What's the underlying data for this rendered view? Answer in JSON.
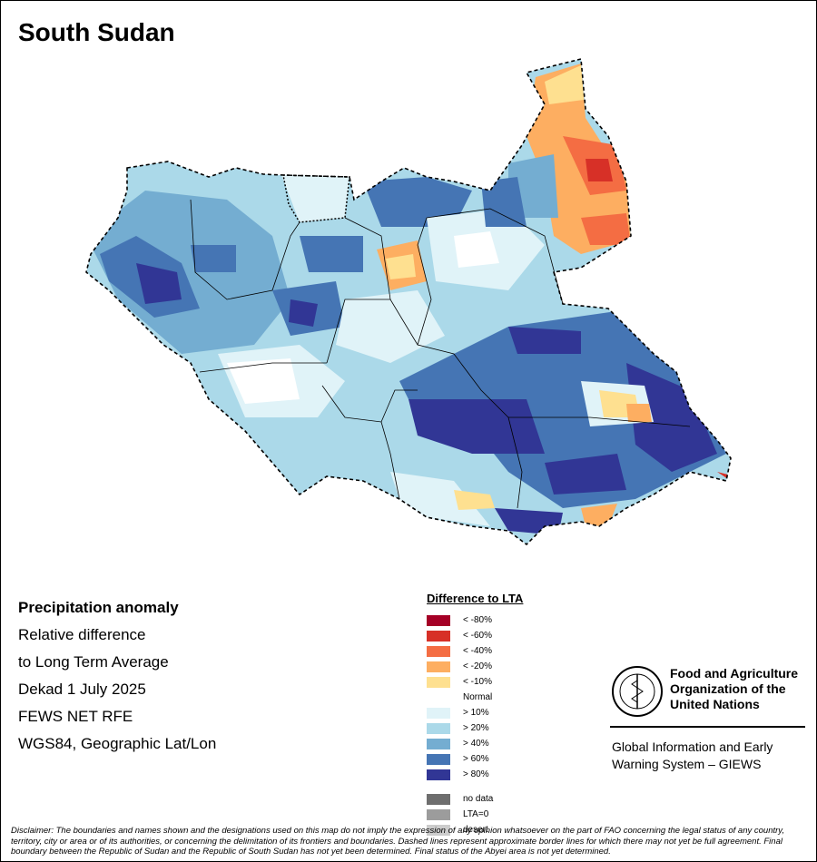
{
  "title": "South Sudan",
  "info": {
    "heading": "Precipitation anomaly",
    "lines": [
      "Relative difference",
      "to Long Term Average",
      "Dekad 1 July 2025",
      "FEWS NET RFE",
      "WGS84, Geographic Lat/Lon"
    ]
  },
  "legend": {
    "title": "Difference to LTA",
    "items": [
      {
        "label": "< -80%",
        "color": "#a50026"
      },
      {
        "label": "< -60%",
        "color": "#d73027"
      },
      {
        "label": "< -40%",
        "color": "#f46d43"
      },
      {
        "label": "< -20%",
        "color": "#fdae61"
      },
      {
        "label": "< -10%",
        "color": "#fee090"
      },
      {
        "label": "Normal",
        "color": "#ffffff"
      },
      {
        "label": "> 10%",
        "color": "#e0f3f8"
      },
      {
        "label": "> 20%",
        "color": "#abd9e9"
      },
      {
        "label": "> 40%",
        "color": "#74add1"
      },
      {
        "label": "> 60%",
        "color": "#4575b4"
      },
      {
        "label": "> 80%",
        "color": "#313695"
      }
    ],
    "extra": [
      {
        "label": "no data",
        "color": "#6e6e6e"
      },
      {
        "label": "LTA=0",
        "color": "#9c9c9c"
      },
      {
        "label": "desert",
        "color": "#cccccc"
      }
    ]
  },
  "fao": {
    "name_lines": [
      "Food and Agriculture",
      "Organization of the",
      "United Nations"
    ],
    "logo_text": "FAO",
    "logo_motto": "FIAT PANIS",
    "giews_lines": [
      "Global Information and Early",
      "Warning System – GIEWS"
    ]
  },
  "disclaimer": "Disclaimer: The boundaries and names shown and the designations used on this map do not imply the expression of any opinion whatsoever on the part of FAO concerning the legal status of any country, territory, city or area or of its authorities, or concerning the delimitation of its frontiers and boundaries. Dashed lines represent approximate border lines for which there may not yet be full agreement. Final boundary between the Republic of Sudan and the Republic of South Sudan has not yet been determined. Final status of the Abyei area is not yet determined."
}
